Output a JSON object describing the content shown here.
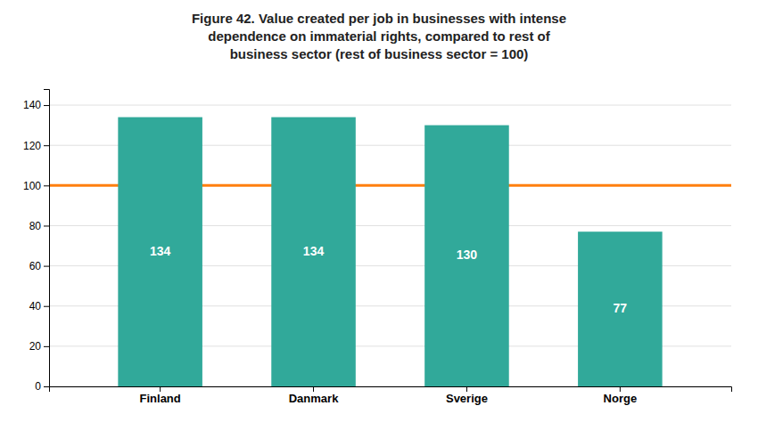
{
  "chart_data": {
    "type": "bar",
    "title": "Figure 42. Value created per job in businesses with intense\ndependence on immaterial rights, compared to rest of\nbusiness sector (rest of business sector = 100)",
    "categories": [
      "Finland",
      "Danmark",
      "Sverige",
      "Norge"
    ],
    "values": [
      134,
      134,
      130,
      77
    ],
    "color": "#31a99a",
    "reference_line": 100,
    "ylim": [
      0,
      148
    ],
    "yticks": [
      0,
      20,
      40,
      60,
      80,
      100,
      120,
      140
    ],
    "grid": true,
    "data_labels": true
  }
}
